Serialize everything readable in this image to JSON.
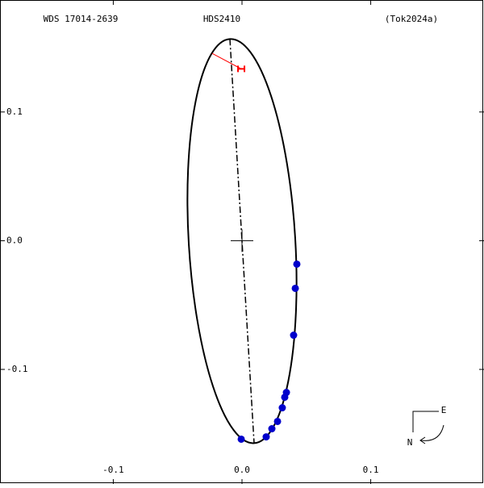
{
  "chart_data": {
    "type": "orbit",
    "title": "HDS2410",
    "subtitle_left": "WDS 17014-2639",
    "subtitle_right": "(Tok2024a)",
    "compass": {
      "east": "E",
      "north": "N"
    },
    "xlim": [
      -0.188,
      0.188
    ],
    "ylim": [
      -0.189,
      0.187
    ],
    "xticks": [
      -0.1,
      {
        "value": 0,
        "label": "0.0"
      },
      0.1
    ],
    "yticks": [
      0.1,
      {
        "value": 0,
        "label": "0.0"
      },
      -0.1
    ],
    "orbit": {
      "apsides": [
        [
          -0.0094,
          0.1567
        ],
        [
          0.0094,
          -0.1573
        ]
      ],
      "semi_minor": 0.0414
    },
    "series": [
      {
        "name": "measures",
        "color": "#0000cc",
        "x": [
          0.0426,
          0.0414,
          0.0401,
          0.0345,
          0.0332,
          0.0313,
          0.0276,
          0.0232,
          0.0188,
          -0.0006
        ],
        "y": [
          -0.0182,
          -0.037,
          -0.0734,
          -0.1179,
          -0.1216,
          -0.1298,
          -0.1404,
          -0.1461,
          -0.1524,
          -0.1542
        ]
      },
      {
        "name": "residual",
        "color": "#ff0000",
        "x": [
          -0.0006
        ],
        "y": [
          0.1335
        ],
        "predicted_x": [
          -0.0232
        ],
        "predicted_y": [
          0.1455
        ]
      }
    ]
  }
}
